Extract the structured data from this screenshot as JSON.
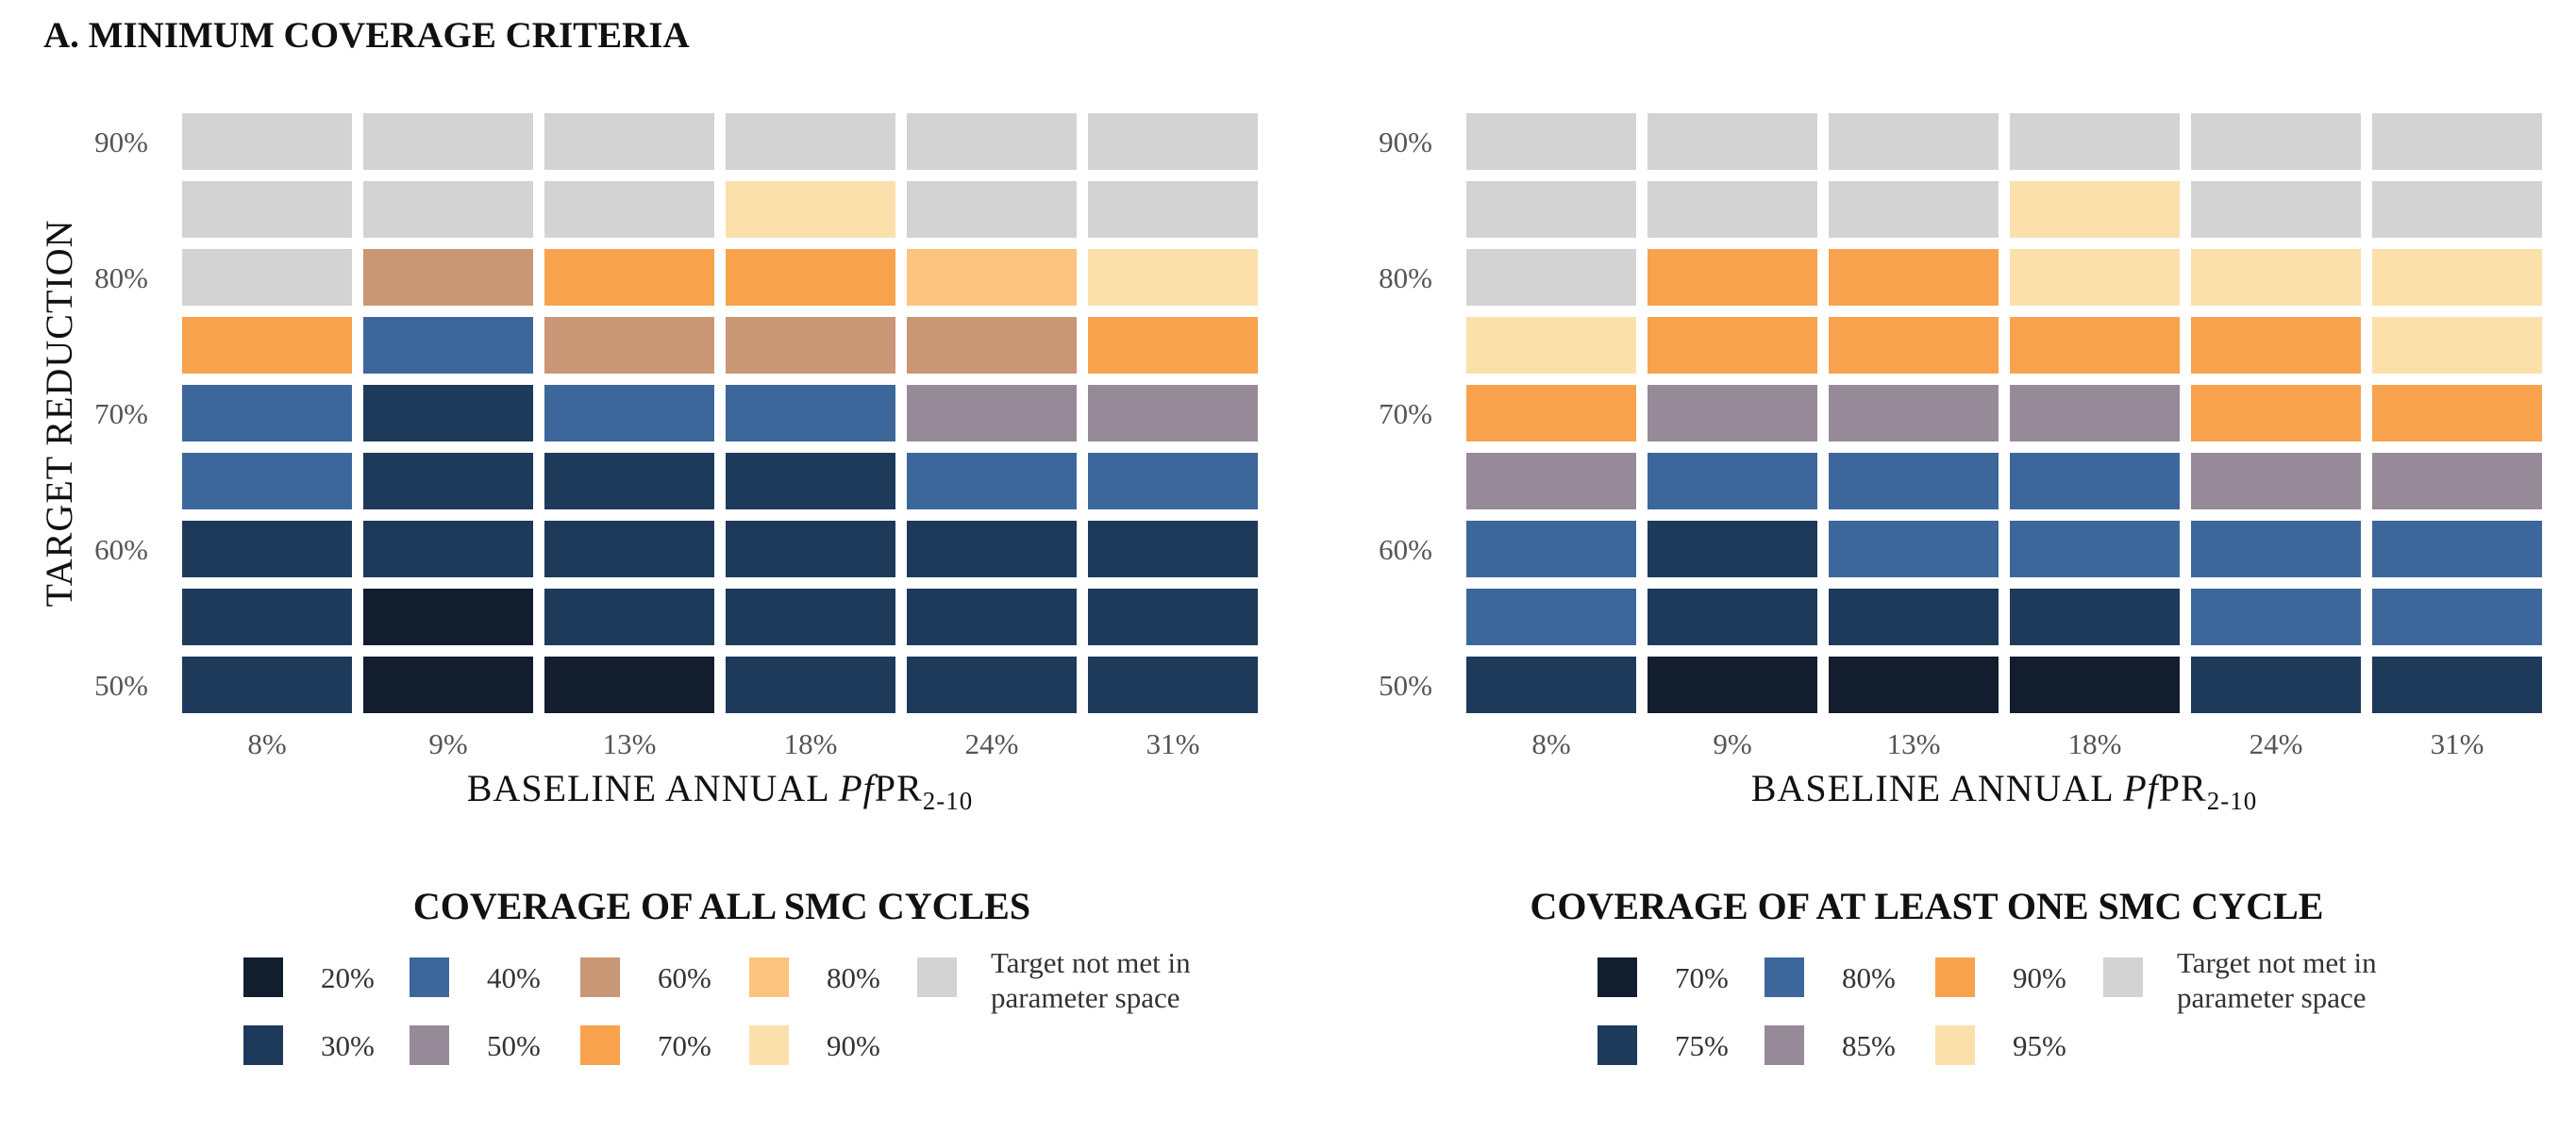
{
  "panel_title": "A.  MINIMUM  COVERAGE  CRITERIA",
  "chart_data": [
    {
      "type": "heatmap",
      "title": "",
      "xlabel": "BASELINE  ANNUAL",
      "xlabel_italic": "Pf",
      "xlabel_suffix": "PR",
      "xlabel_subscript": "2-10",
      "ylabel": "TARGET  REDUCTION",
      "x_categories": [
        "8%",
        "9%",
        "13%",
        "18%",
        "24%",
        "31%"
      ],
      "y_values": [
        50,
        55,
        60,
        65,
        70,
        75,
        80,
        85,
        90
      ],
      "y_tick_labels": {
        "50": "50%",
        "60": "60%",
        "70": "70%",
        "80": "80%",
        "90": "90%"
      },
      "cells": [
        [
          "30%",
          "20%",
          "20%",
          "30%",
          "30%",
          "30%"
        ],
        [
          "30%",
          "20%",
          "30%",
          "30%",
          "30%",
          "30%"
        ],
        [
          "30%",
          "30%",
          "30%",
          "30%",
          "30%",
          "30%"
        ],
        [
          "40%",
          "30%",
          "30%",
          "30%",
          "40%",
          "40%"
        ],
        [
          "40%",
          "30%",
          "40%",
          "40%",
          "50%",
          "50%"
        ],
        [
          "70%",
          "40%",
          "60%",
          "60%",
          "60%",
          "70%"
        ],
        [
          "NA",
          "60%",
          "70%",
          "70%",
          "80%",
          "90%"
        ],
        [
          "NA",
          "NA",
          "NA",
          "90%",
          "NA",
          "NA"
        ],
        [
          "NA",
          "NA",
          "NA",
          "NA",
          "NA",
          "NA"
        ]
      ],
      "legend": {
        "title": "COVERAGE  OF  ALL  SMC  CYCLES",
        "items": [
          {
            "key": "20%",
            "label": "20%",
            "color": "#121e2e"
          },
          {
            "key": "30%",
            "label": "30%",
            "color": "#1e3a5b"
          },
          {
            "key": "40%",
            "label": "40%",
            "color": "#3d679b"
          },
          {
            "key": "50%",
            "label": "50%",
            "color": "#978a98"
          },
          {
            "key": "60%",
            "label": "60%",
            "color": "#c99676"
          },
          {
            "key": "70%",
            "label": "70%",
            "color": "#f8a24e"
          },
          {
            "key": "80%",
            "label": "80%",
            "color": "#fcc47e"
          },
          {
            "key": "90%",
            "label": "90%",
            "color": "#fce0ab"
          }
        ],
        "na_item": {
          "key": "NA",
          "color": "#d3d3d3",
          "label_line1": "Target not met in",
          "label_line2": "parameter space"
        }
      }
    },
    {
      "type": "heatmap",
      "title": "",
      "xlabel": "BASELINE  ANNUAL",
      "xlabel_italic": "Pf",
      "xlabel_suffix": "PR",
      "xlabel_subscript": "2-10",
      "ylabel": "",
      "x_categories": [
        "8%",
        "9%",
        "13%",
        "18%",
        "24%",
        "31%"
      ],
      "y_values": [
        50,
        55,
        60,
        65,
        70,
        75,
        80,
        85,
        90
      ],
      "y_tick_labels": {
        "50": "50%",
        "60": "60%",
        "70": "70%",
        "80": "80%",
        "90": "90%"
      },
      "cells": [
        [
          "75%",
          "70%",
          "70%",
          "70%",
          "75%",
          "75%"
        ],
        [
          "80%",
          "75%",
          "75%",
          "75%",
          "80%",
          "80%"
        ],
        [
          "80%",
          "75%",
          "80%",
          "80%",
          "80%",
          "80%"
        ],
        [
          "85%",
          "80%",
          "80%",
          "80%",
          "85%",
          "85%"
        ],
        [
          "90%",
          "85%",
          "85%",
          "85%",
          "90%",
          "90%"
        ],
        [
          "95%",
          "90%",
          "90%",
          "90%",
          "90%",
          "95%"
        ],
        [
          "NA",
          "90%",
          "90%",
          "95%",
          "95%",
          "95%"
        ],
        [
          "NA",
          "NA",
          "NA",
          "95%",
          "NA",
          "NA"
        ],
        [
          "NA",
          "NA",
          "NA",
          "NA",
          "NA",
          "NA"
        ]
      ],
      "legend": {
        "title": "COVERAGE OF AT LEAST ONE SMC CYCLE",
        "items": [
          {
            "key": "70%",
            "label": "70%",
            "color": "#121e2e"
          },
          {
            "key": "75%",
            "label": "75%",
            "color": "#1e3a5b"
          },
          {
            "key": "80%",
            "label": "80%",
            "color": "#3d679b"
          },
          {
            "key": "85%",
            "label": "85%",
            "color": "#978a98"
          },
          {
            "key": "90%",
            "label": "90%",
            "color": "#f8a24e"
          },
          {
            "key": "95%",
            "label": "95%",
            "color": "#fce0ab"
          }
        ],
        "na_item": {
          "key": "NA",
          "color": "#d3d3d3",
          "label_line1": "Target not met in",
          "label_line2": "parameter space"
        }
      }
    }
  ]
}
